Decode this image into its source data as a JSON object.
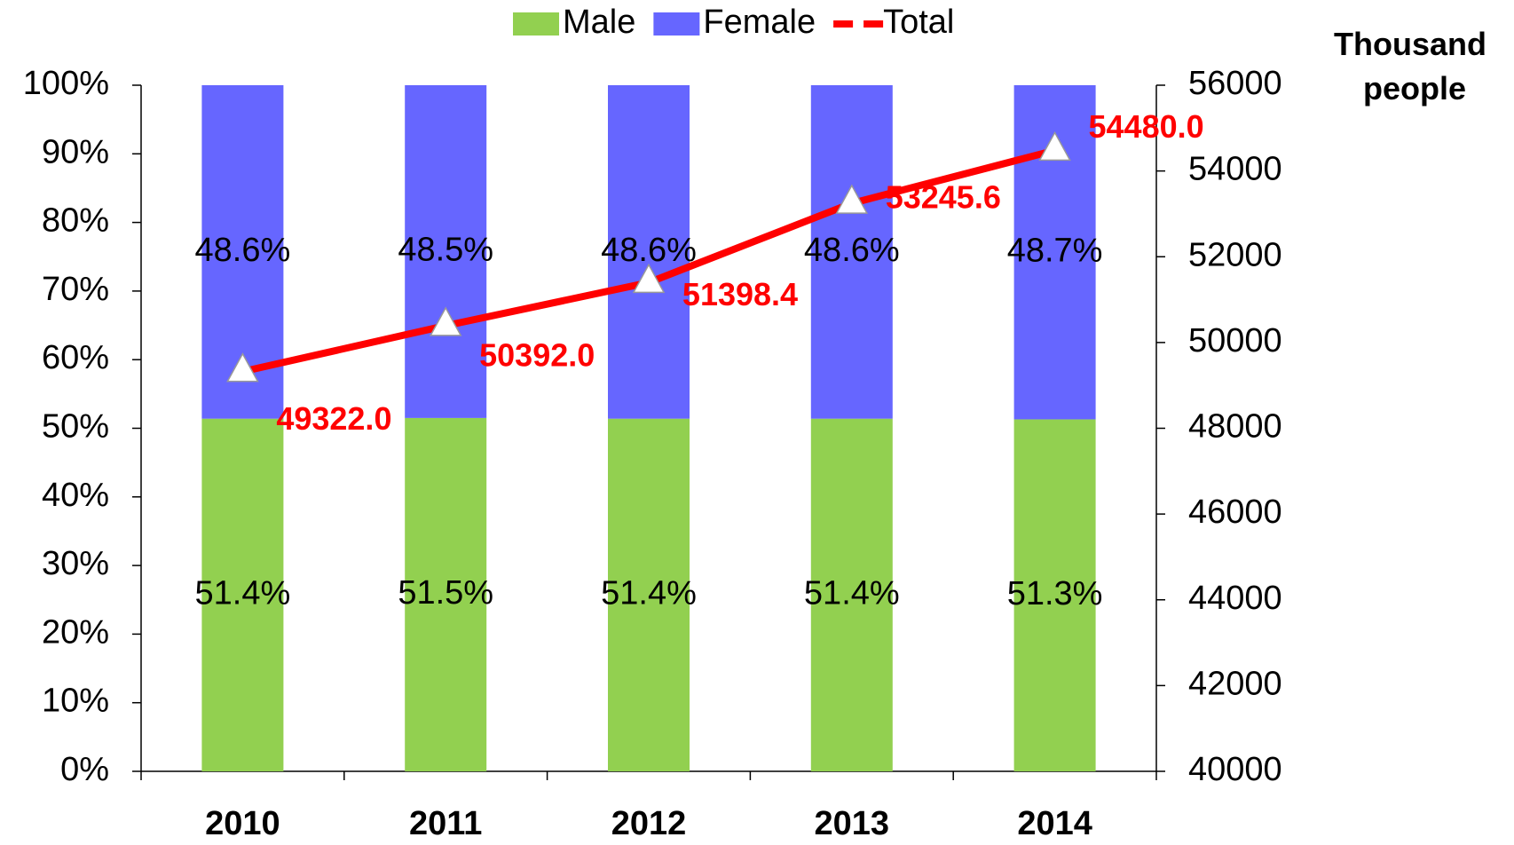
{
  "chart_data": {
    "type": "stacked_bar_line",
    "categories": [
      "2010",
      "2011",
      "2012",
      "2013",
      "2014"
    ],
    "series": [
      {
        "name": "Male",
        "color": "#92d050",
        "values": [
          51.4,
          51.5,
          51.4,
          51.4,
          51.3
        ],
        "value_labels": [
          "51.4%",
          "51.5%",
          "51.4%",
          "51.4%",
          "51.3%"
        ]
      },
      {
        "name": "Female",
        "color": "#6666ff",
        "values": [
          48.6,
          48.5,
          48.6,
          48.6,
          48.7
        ],
        "value_labels": [
          "48.6%",
          "48.5%",
          "48.6%",
          "48.6%",
          "48.7%"
        ]
      },
      {
        "name": "Total",
        "color": "#ff0000",
        "axis": "y2",
        "values": [
          49322.0,
          50392.0,
          51398.4,
          53245.6,
          54480.0
        ],
        "value_labels": [
          "49322.0",
          "50392.0",
          "51398.4",
          "53245.6",
          "54480.0"
        ]
      }
    ],
    "ylim": [
      0,
      100
    ],
    "yticks": [
      {
        "value": 0,
        "label": "0%"
      },
      {
        "value": 10,
        "label": "10%"
      },
      {
        "value": 20,
        "label": "20%"
      },
      {
        "value": 30,
        "label": "30%"
      },
      {
        "value": 40,
        "label": "40%"
      },
      {
        "value": 50,
        "label": "50%"
      },
      {
        "value": 60,
        "label": "60%"
      },
      {
        "value": 70,
        "label": "70%"
      },
      {
        "value": 80,
        "label": "80%"
      },
      {
        "value": 90,
        "label": "90%"
      },
      {
        "value": 100,
        "label": "100%"
      }
    ],
    "y2lim": [
      40000,
      56000
    ],
    "y2ticks": [
      40000,
      42000,
      44000,
      46000,
      48000,
      50000,
      52000,
      54000,
      56000
    ],
    "y2label": "Thousand people",
    "legend": "top"
  }
}
